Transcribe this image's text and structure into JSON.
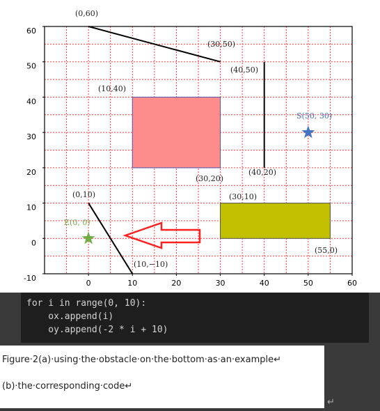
{
  "chart_data": {
    "type": "line",
    "xlim": [
      -10,
      60
    ],
    "ylim": [
      -10,
      60
    ],
    "xticks": [
      0,
      10,
      20,
      30,
      40,
      50,
      60
    ],
    "yticks": [
      -10,
      0,
      10,
      20,
      30,
      40,
      50,
      60
    ],
    "xgrid": [
      -5,
      0,
      5,
      10,
      15,
      20,
      25,
      30,
      35,
      40,
      45,
      50,
      55
    ],
    "ygrid": [
      -5,
      0,
      5,
      10,
      15,
      20,
      25,
      30,
      35,
      40,
      45,
      50,
      55
    ],
    "grid_color": "#ff3b3b",
    "lines": [
      {
        "x": [
          0,
          30
        ],
        "y": [
          60,
          50
        ],
        "color": "#000000"
      },
      {
        "x": [
          40,
          40
        ],
        "y": [
          50,
          20
        ],
        "color": "#000000"
      },
      {
        "x": [
          0,
          10
        ],
        "y": [
          10,
          -10
        ],
        "color": "#000000"
      }
    ],
    "rects": [
      {
        "x": [
          10,
          30
        ],
        "y": [
          20,
          40
        ],
        "color": "#ff8c8c",
        "edge": "#4a5ab0"
      },
      {
        "x": [
          30,
          55
        ],
        "y": [
          0,
          10
        ],
        "color": "#c0c000",
        "edge": "#555555"
      }
    ],
    "points": [
      {
        "x": 50,
        "y": 30,
        "color": "#4472c4"
      },
      {
        "x": 0,
        "y": 0,
        "color": "#70ad47"
      }
    ],
    "annotations": [
      "(0,60)",
      "(30,50)",
      "(40,50)",
      "(10,40)",
      "S(50, 30)",
      "(40,20)",
      "(30,20)",
      "(0,10)",
      "(30,10)",
      "E(0, 0)",
      "(55,0)",
      "(10,−10)"
    ]
  },
  "code": {
    "lines": [
      "for i in range(0, 10):",
      "    ox.append(i)",
      "    oy.append(-2 * i + 10)"
    ]
  },
  "caption": {
    "lines": [
      "Figure·2(a)·using·the·obstacle·on·the·bottom·as·an·example↵",
      "(b)·the·corresponding·code↵"
    ],
    "end_mark": "↵"
  }
}
